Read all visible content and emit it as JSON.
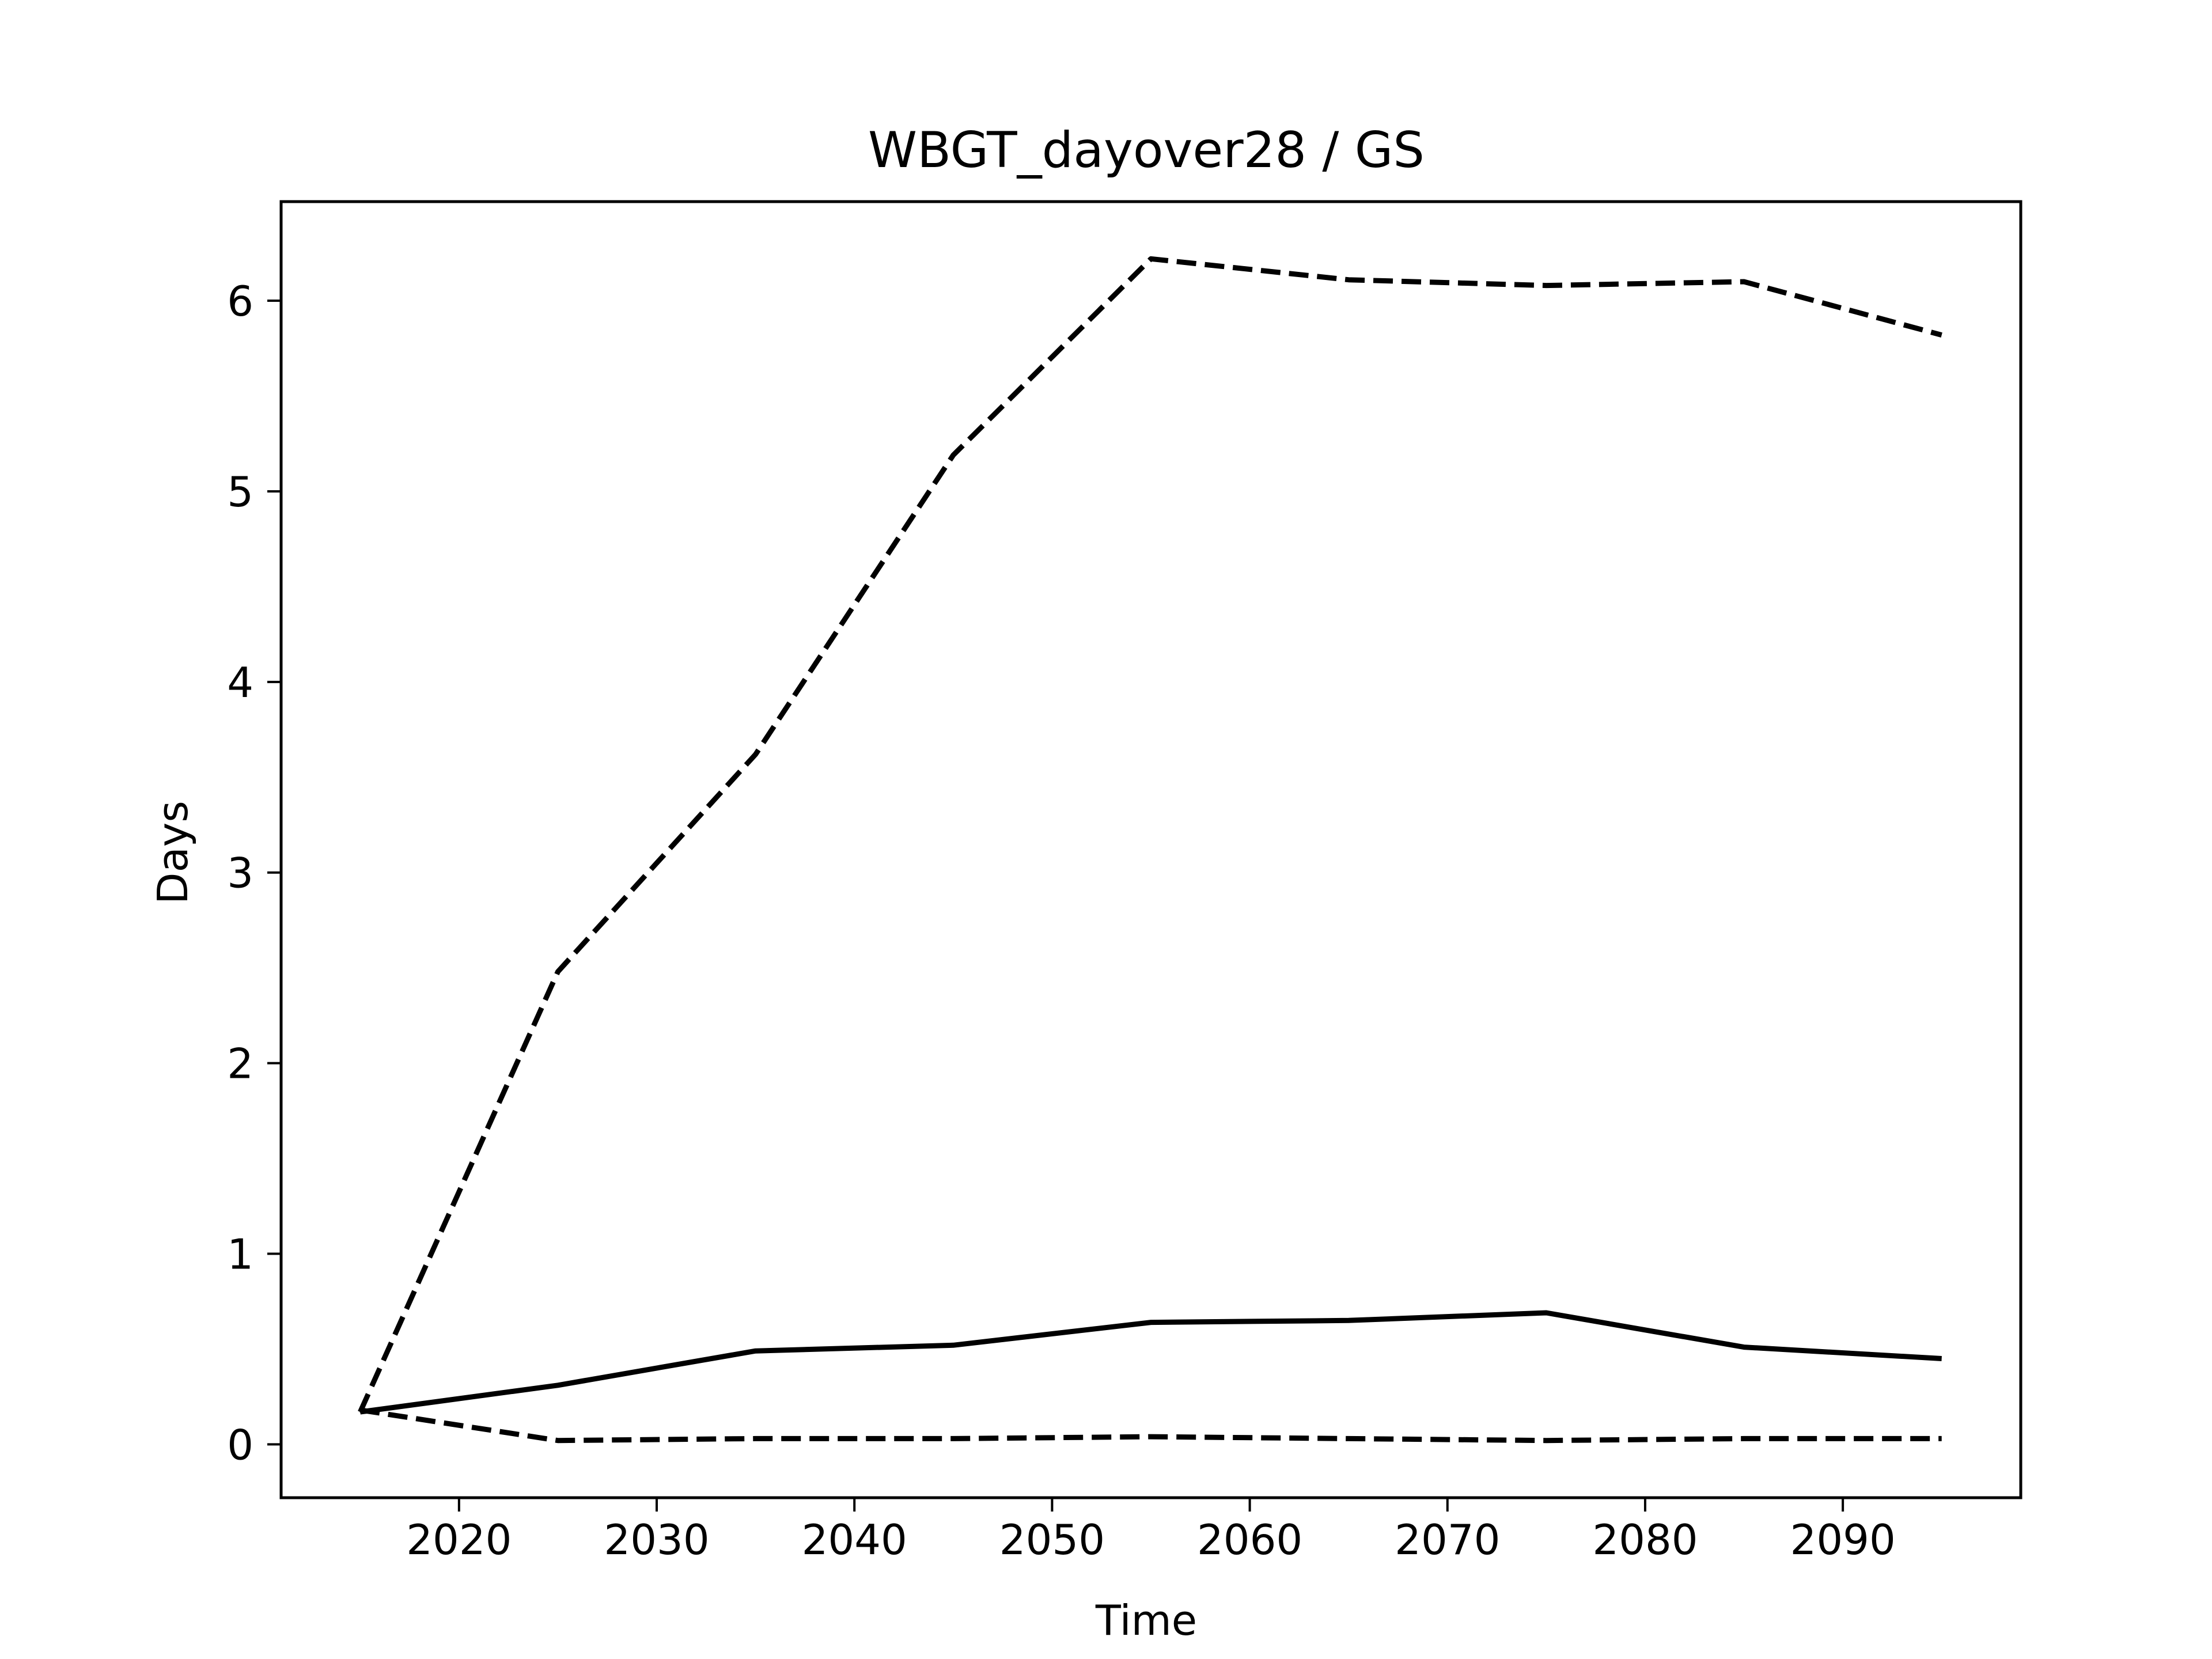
{
  "chart_data": {
    "type": "line",
    "title": "WBGT_dayover28 / GS",
    "xlabel": "Time",
    "ylabel": "Days",
    "xlim": [
      2011,
      2099
    ],
    "ylim": [
      -0.28,
      6.52
    ],
    "xticks": [
      2020,
      2030,
      2040,
      2050,
      2060,
      2070,
      2080,
      2090
    ],
    "yticks": [
      0,
      1,
      2,
      3,
      4,
      5,
      6
    ],
    "grid": false,
    "legend": "none",
    "x": [
      2015,
      2025,
      2035,
      2045,
      2055,
      2065,
      2075,
      2085,
      2095
    ],
    "series": [
      {
        "style": "solid",
        "color": "#000000",
        "values": [
          0.17,
          0.31,
          0.49,
          0.52,
          0.64,
          0.65,
          0.69,
          0.51,
          0.45
        ]
      },
      {
        "style": "dashed",
        "color": "#000000",
        "values": [
          0.17,
          2.48,
          3.62,
          5.19,
          6.22,
          6.11,
          6.08,
          6.1,
          5.82
        ]
      },
      {
        "style": "dashed",
        "color": "#000000",
        "values": [
          0.18,
          0.02,
          0.03,
          0.03,
          0.04,
          0.03,
          0.02,
          0.03,
          0.03
        ]
      }
    ]
  }
}
